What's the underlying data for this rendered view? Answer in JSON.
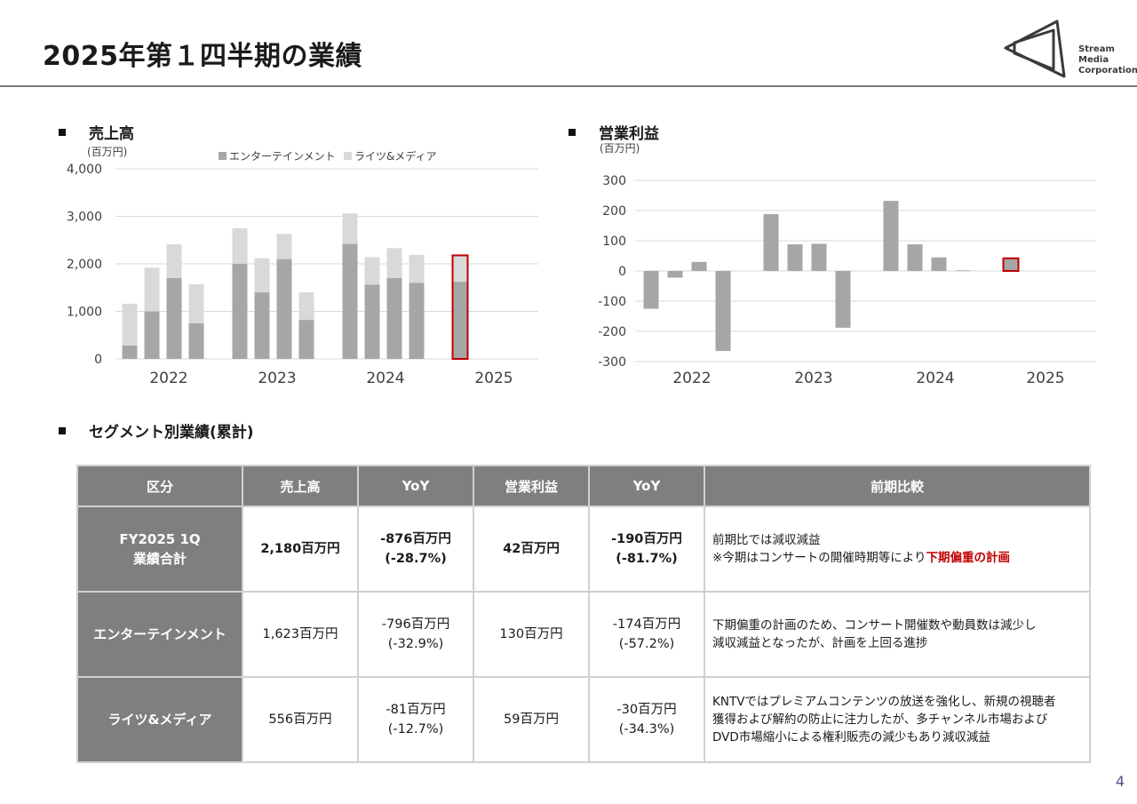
{
  "title": "2025年第１四半期の業績",
  "logo": {
    "line1": "Stream",
    "line2": "Media",
    "line3": "Corporation"
  },
  "sales_section": "売上高",
  "op_section": "営業利益",
  "segment_section": "セグメント別業績(累計)",
  "page_number": "4",
  "chart_data": [
    {
      "type": "bar",
      "title": "売上高",
      "unit_label": "(百万円)",
      "stacked": true,
      "ylim": [
        0,
        4000
      ],
      "yticks": [
        "0",
        "1,000",
        "2,000",
        "3,000",
        "4,000"
      ],
      "year_labels": [
        "2022",
        "2023",
        "2024",
        "2025"
      ],
      "series": [
        {
          "name": "エンターテインメント",
          "color": "#a6a6a6",
          "values": [
            280,
            1000,
            1700,
            750,
            2000,
            1400,
            2100,
            820,
            2420,
            1560,
            1700,
            1600,
            1623
          ]
        },
        {
          "name": "ライツ&メディア",
          "color": "#d9d9d9",
          "values": [
            880,
            920,
            710,
            820,
            750,
            720,
            530,
            580,
            640,
            580,
            630,
            590,
            556
          ]
        }
      ],
      "highlight_index": 12,
      "highlight_color": "#c00000",
      "legend": "top-center",
      "grid": true
    },
    {
      "type": "bar",
      "title": "営業利益",
      "unit_label": "(百万円)",
      "ylim": [
        -300,
        300
      ],
      "yticks": [
        "-300",
        "-200",
        "-100",
        "0",
        "100",
        "200",
        "300"
      ],
      "year_labels": [
        "2022",
        "2023",
        "2024",
        "2025"
      ],
      "values": [
        -125,
        -22,
        30,
        -265,
        188,
        88,
        90,
        -188,
        232,
        88,
        45,
        2,
        42
      ],
      "highlight_index": 12,
      "highlight_color": "#c00000",
      "grid": true
    }
  ],
  "table": {
    "headers": [
      "区分",
      "売上高",
      "YoY",
      "営業利益",
      "YoY",
      "前期比較"
    ],
    "rows": [
      {
        "label1": "FY2025 1Q",
        "label2": "業績合計",
        "sales": "2,180百万円",
        "sales_yoy1": "-876百万円",
        "sales_yoy2": "(-28.7%)",
        "op": "42百万円",
        "op_yoy1": "-190百万円",
        "op_yoy2": "(-81.7%)",
        "comment1": "前期比では減収減益",
        "comment2a": "※今期はコンサートの開催時期等により",
        "comment2b": "下期偏重の計画"
      },
      {
        "label": "エンターテインメント",
        "sales": "1,623百万円",
        "sales_yoy1": "-796百万円",
        "sales_yoy2": "(-32.9%)",
        "op": "130百万円",
        "op_yoy1": "-174百万円",
        "op_yoy2": "(-57.2%)",
        "comment1": "下期偏重の計画のため、コンサート開催数や動員数は減少し",
        "comment2": "減収減益となったが、計画を上回る進捗"
      },
      {
        "label": "ライツ&メディア",
        "sales": "556百万円",
        "sales_yoy1": "-81百万円",
        "sales_yoy2": "(-12.7%)",
        "op": "59百万円",
        "op_yoy1": "-30百万円",
        "op_yoy2": "(-34.3%)",
        "comment1": "KNTVではプレミアムコンテンツの放送を強化し、新規の視聴者",
        "comment2": "獲得および解約の防止に注力したが、多チャンネル市場および",
        "comment3": "DVD市場縮小による権利販売の減少もあり減収減益"
      }
    ]
  }
}
